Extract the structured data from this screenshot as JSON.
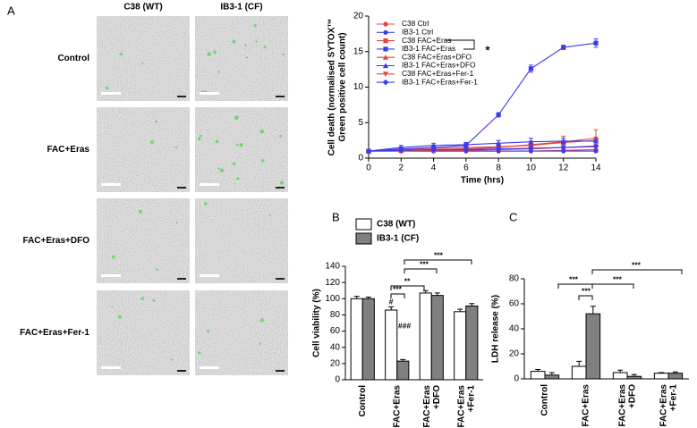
{
  "panel_labels": [
    "A",
    "B",
    "C"
  ],
  "images": {
    "columns": [
      "C38 (WT)",
      "IB3-1 (CF)"
    ],
    "rows": [
      "Control",
      "FAC+Eras",
      "FAC+Eras+DFO",
      "FAC+Eras+Fer-1"
    ]
  },
  "chart_data": [
    {
      "type": "line",
      "y_label": [
        "Cell death (normalised SYTOX™",
        "Green positive cell count)"
      ],
      "x_label": "Time (hrs)",
      "x": [
        0,
        2,
        4,
        6,
        8,
        10,
        12,
        14
      ],
      "xlim": [
        0,
        14
      ],
      "xticks": [
        0,
        2,
        4,
        6,
        8,
        10,
        12,
        14
      ],
      "ylim": [
        0,
        20
      ],
      "yticks": [
        0,
        5,
        10,
        15,
        20
      ],
      "series": [
        {
          "name": "C38 Ctrl",
          "color": "#e8413c",
          "marker": "circle",
          "values": [
            1,
            1,
            1,
            1,
            1,
            1,
            1.1,
            1.2
          ]
        },
        {
          "name": "IB3-1 Ctrl",
          "color": "#3b3bf0",
          "marker": "circle",
          "values": [
            1,
            1,
            1,
            1,
            1,
            1,
            1,
            1
          ]
        },
        {
          "name": "C38 FAC+Eras",
          "color": "#e8413c",
          "marker": "square",
          "values": [
            1,
            1.2,
            1.4,
            1.5,
            1.6,
            1.8,
            2.2,
            2.5
          ]
        },
        {
          "name": "IB3-1 FAC+Eras",
          "color": "#3b3bf0",
          "marker": "square",
          "values": [
            1,
            1.3,
            1.5,
            1.8,
            6.1,
            12.6,
            15.6,
            16.2
          ],
          "errors": [
            0.1,
            0.2,
            0.3,
            0.2,
            0.3,
            0.5,
            0.3,
            0.6
          ]
        },
        {
          "name": "C38 FAC+Eras+DFO",
          "color": "#e8413c",
          "marker": "triangle-up",
          "values": [
            1,
            1.1,
            1.2,
            1.3,
            1.5,
            1.9,
            2.3,
            2.8
          ],
          "errors": [
            0.1,
            0.3,
            0.3,
            0.3,
            0.4,
            0.5,
            0.8,
            1.2
          ]
        },
        {
          "name": "IB3-1 FAC+Eras+DFO",
          "color": "#3b3bf0",
          "marker": "triangle-up",
          "values": [
            1,
            1.5,
            1.8,
            1.9,
            2.1,
            2.3,
            2.4,
            2.4
          ],
          "errors": [
            0.1,
            0.3,
            0.3,
            0.3,
            0.4,
            0.5,
            0.4,
            0.5
          ]
        },
        {
          "name": "C38 FAC+Eras+Fer-1",
          "color": "#e8413c",
          "marker": "triangle-down",
          "values": [
            1,
            1,
            1.1,
            1.1,
            1.2,
            1.3,
            1.5,
            1.6
          ]
        },
        {
          "name": "IB3-1 FAC+Eras+Fer-1",
          "color": "#3b3bf0",
          "marker": "diamond",
          "values": [
            1,
            1.1,
            1.2,
            1.2,
            1.3,
            1.4,
            1.5,
            1.7
          ]
        }
      ],
      "annotations": [
        "*"
      ]
    },
    {
      "type": "bar",
      "y_label": "Cell viability (%)",
      "categories": [
        "Control",
        "FAC+Eras",
        "FAC+Eras\n+DFO",
        "FAC+Eras\n+Fer-1"
      ],
      "ylim": [
        0,
        140
      ],
      "yticks": [
        0,
        20,
        40,
        60,
        80,
        100,
        120,
        140
      ],
      "series": [
        {
          "name": "C38 (WT)",
          "color": "#ffffff",
          "values": [
            100,
            86,
            107,
            84
          ],
          "errors": [
            3,
            4,
            3,
            3
          ]
        },
        {
          "name": "IB3-1 (CF)",
          "color": "#808080",
          "values": [
            100,
            23,
            104,
            91
          ],
          "errors": [
            2,
            2,
            3,
            3
          ]
        }
      ],
      "annotations": [
        "***",
        "***",
        "**",
        "***",
        "#",
        "###"
      ]
    },
    {
      "type": "bar",
      "y_label": "LDH release (%)",
      "categories": [
        "Control",
        "FAC+Eras",
        "FAC+Eras\n+DFO",
        "FAC+Eras\n+Fer-1"
      ],
      "ylim": [
        0,
        80
      ],
      "yticks": [
        0,
        20,
        40,
        60,
        80
      ],
      "series": [
        {
          "color": "#ffffff",
          "values": [
            6,
            10,
            5,
            4.5
          ],
          "errors": [
            1.5,
            4,
            2,
            0.5
          ]
        },
        {
          "color": "#808080",
          "values": [
            3,
            52,
            2,
            4.5
          ],
          "errors": [
            2,
            6,
            1.5,
            1
          ]
        }
      ],
      "annotations": [
        "***",
        "***",
        "***",
        "***"
      ]
    }
  ]
}
